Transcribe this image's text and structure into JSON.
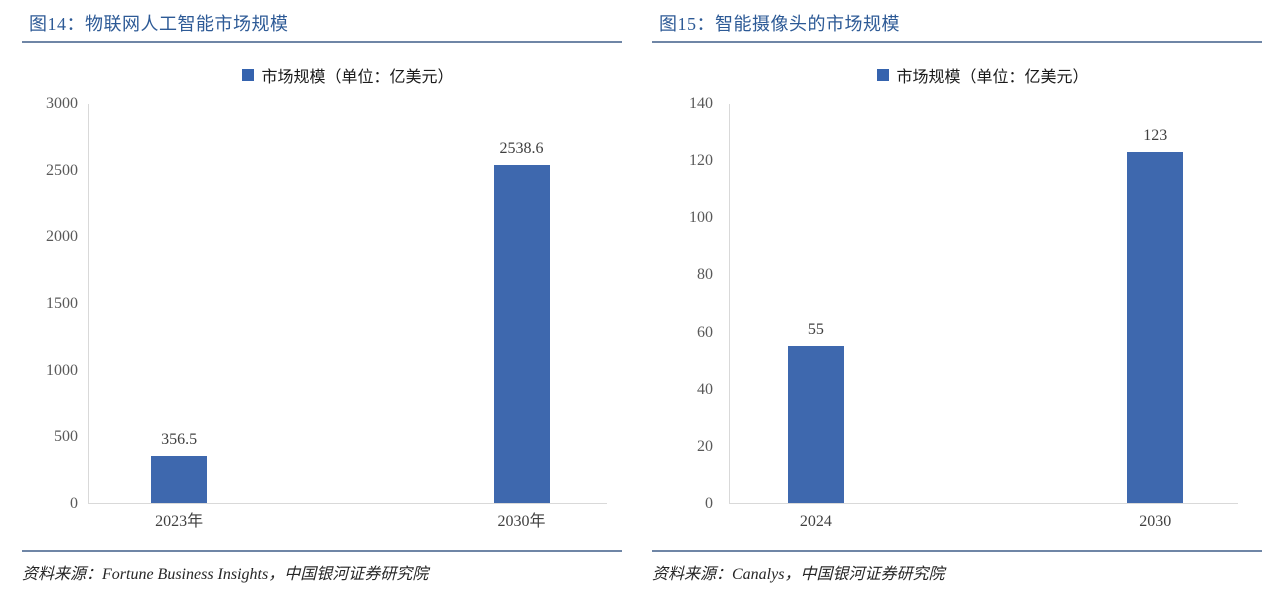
{
  "colors": {
    "accent_blue": "#3e68ae",
    "legend_swatch_blue": "#3563ae",
    "title_blue": "#2d5a96",
    "rule_blue": "#6f86a6",
    "axis_line_gray": "#d9d9d9",
    "tick_text_gray": "#595959",
    "label_text_dark": "#404040"
  },
  "figures": [
    {
      "title": "图14：物联网人工智能市场规模",
      "legend_label": "市场规模（单位：亿美元）",
      "source": "资料来源：Fortune Business Insights，中国银河证券研究院",
      "chart_data": {
        "type": "bar",
        "title": "图14：物联网人工智能市场规模",
        "legend": [
          "市场规模（单位：亿美元）"
        ],
        "legend_position": "top",
        "categories": [
          "2023年",
          "2030年"
        ],
        "values": [
          356.5,
          2538.6
        ],
        "value_labels": [
          "356.5",
          "2538.6"
        ],
        "ylim": [
          0,
          3000
        ],
        "yticks": [
          0,
          500,
          1000,
          1500,
          2000,
          2500,
          3000
        ],
        "grid": false,
        "bar_color": "#3e68ae",
        "bar_center_pct": [
          17.4,
          83.5
        ]
      }
    },
    {
      "title": "图15：智能摄像头的市场规模",
      "legend_label": "市场规模（单位：亿美元）",
      "source": "资料来源：Canalys，中国银河证券研究院",
      "chart_data": {
        "type": "bar",
        "title": "图15：智能摄像头的市场规模",
        "legend": [
          "市场规模（单位：亿美元）"
        ],
        "legend_position": "top",
        "categories": [
          "2024",
          "2030"
        ],
        "values": [
          55,
          123
        ],
        "value_labels": [
          "55",
          "123"
        ],
        "ylim": [
          0,
          140
        ],
        "yticks": [
          0,
          20,
          40,
          60,
          80,
          100,
          120,
          140
        ],
        "grid": false,
        "bar_color": "#3e68ae",
        "bar_center_pct": [
          16.9,
          83.7
        ]
      }
    }
  ]
}
